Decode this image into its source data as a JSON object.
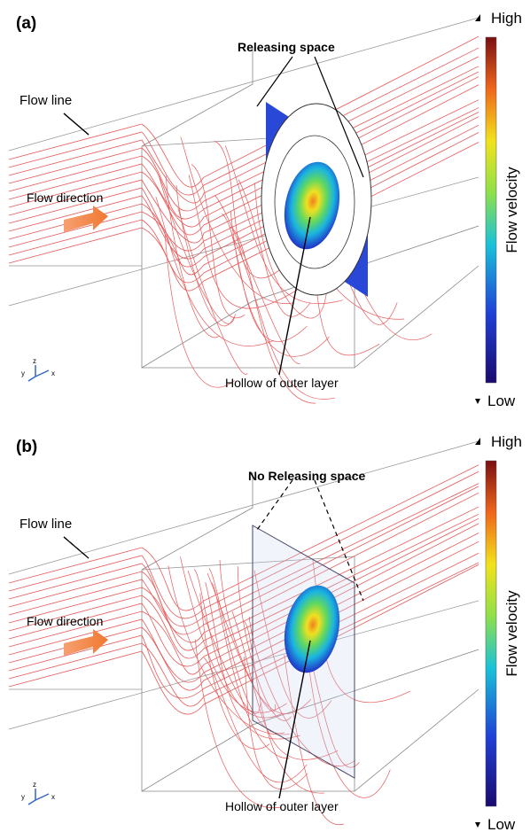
{
  "panels": [
    {
      "label": "(a)",
      "annotation": "Releasing space",
      "flow_line": "Flow line",
      "flow_direction": "Flow direction",
      "hollow": "Hollow of outer layer",
      "colorbar": {
        "high": "High",
        "low": "Low",
        "title": "Flow velocity"
      },
      "axes": {
        "x": "x",
        "y": "y",
        "z": "z"
      }
    },
    {
      "label": "(b)",
      "annotation": "No Releasing space",
      "flow_line": "Flow line",
      "flow_direction": "Flow direction",
      "hollow": "Hollow of outer layer",
      "colorbar": {
        "high": "High",
        "low": "Low",
        "title": "Flow velocity"
      },
      "axes": {
        "x": "x",
        "y": "y",
        "z": "z"
      }
    }
  ]
}
